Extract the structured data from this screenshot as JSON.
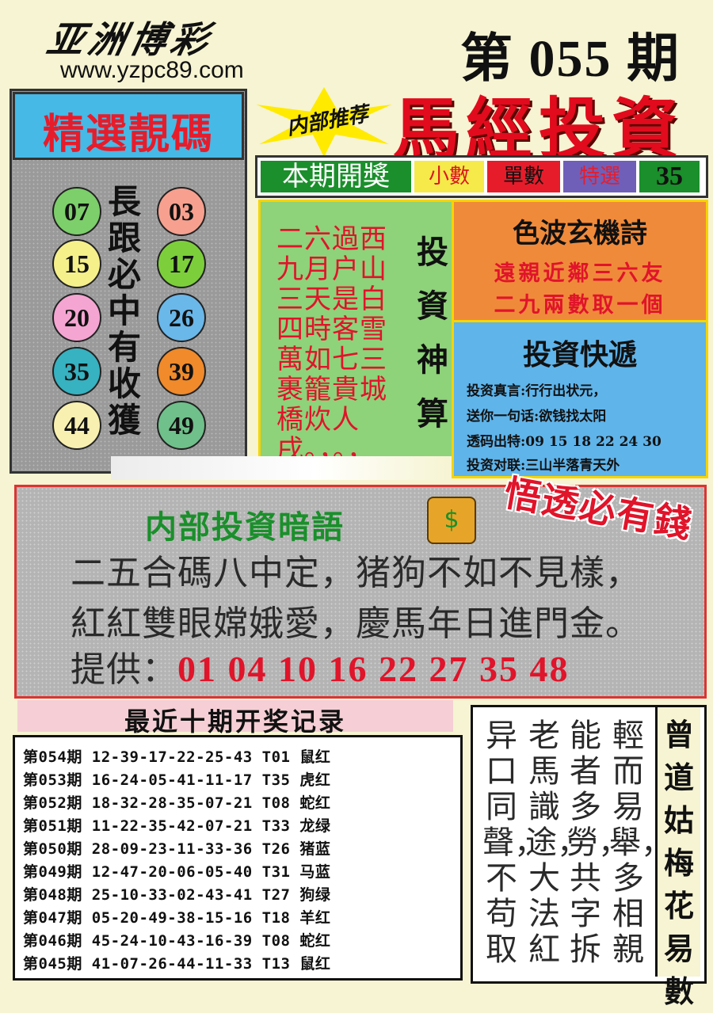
{
  "header": {
    "brand": "亚洲博彩",
    "website": "www.yzpc89.com",
    "issue": "第 055 期"
  },
  "left_panel": {
    "title": "精選靚碼",
    "vertical_text": "長跟必中有收獲",
    "balls": [
      {
        "num": "07",
        "color": "#7ccf6a"
      },
      {
        "num": "03",
        "color": "#f7a08f"
      },
      {
        "num": "15",
        "color": "#f5f08a"
      },
      {
        "num": "17",
        "color": "#7ccf3a"
      },
      {
        "num": "20",
        "color": "#f5a5d2"
      },
      {
        "num": "26",
        "color": "#6ab7ea"
      },
      {
        "num": "35",
        "color": "#36b2c0"
      },
      {
        "num": "39",
        "color": "#f08a2a"
      },
      {
        "num": "44",
        "color": "#f7f0b0"
      },
      {
        "num": "49",
        "color": "#6fc08a"
      }
    ]
  },
  "top_right": {
    "starburst": "内部推荐",
    "headline": "馬經投資",
    "draw_label": "本期開獎",
    "cells": [
      {
        "label": "小數",
        "bg": "#f6e94a",
        "color": "#d9171f"
      },
      {
        "label": "單數",
        "bg": "#e71c2b",
        "color": "#111111"
      },
      {
        "label": "特選",
        "bg": "#6f5fb9",
        "color": "#e71c2b"
      },
      {
        "label": "35",
        "bg": "#1a8f2b",
        "color": "#111111"
      }
    ]
  },
  "poem_box": {
    "text": "二六過西九月户山三天是白四時客雪萬如七三裹籠貴城橋炊人戌。，。，",
    "side_label": "投資神算"
  },
  "color_poem": {
    "title": "色波玄機詩",
    "line1": "遠親近鄰三六友",
    "line2": "二九兩數取一個"
  },
  "quick_news": {
    "title": "投資快遞",
    "lines": [
      "投资真言:行行出状元，",
      "送你一句话:欲钱找太阳",
      "透码出特:09 15 18 22 24 30",
      "投资对联:三山半落青天外"
    ]
  },
  "middle": {
    "title": "内部投資暗語",
    "sticker": "悟透必有錢",
    "line1": "二五合碼八中定，猪狗不如不見樣，",
    "line2": "紅紅雙眼嫦娥愛，慶馬年日進門金。",
    "provide_label": "提供：",
    "provide_numbers": "01 04 10 16 22 27 35 48"
  },
  "records": {
    "title": "最近十期开奖记录",
    "rows": [
      "第054期 12-39-17-22-25-43 T01 鼠红",
      "第053期 16-24-05-41-11-17 T35 虎红",
      "第052期 18-32-28-35-07-21 T08 蛇红",
      "第051期 11-22-35-42-07-21 T33 龙绿",
      "第050期 28-09-23-11-33-36 T26 猪蓝",
      "第049期 12-47-20-06-05-40 T31 马蓝",
      "第048期 25-10-33-02-43-41 T27 狗绿",
      "第047期 05-20-49-38-15-16 T18 羊红",
      "第046期 45-24-10-43-16-39 T08 蛇红",
      "第045期 41-07-26-44-11-33 T13 鼠红"
    ]
  },
  "bottom_right": {
    "columns": [
      "輕而易舉，多相親",
      "能者多勞，共字拆",
      "老馬識途，大法紅",
      "异口同聲，不苟取"
    ],
    "side_title": "曾道姑梅花易數"
  }
}
